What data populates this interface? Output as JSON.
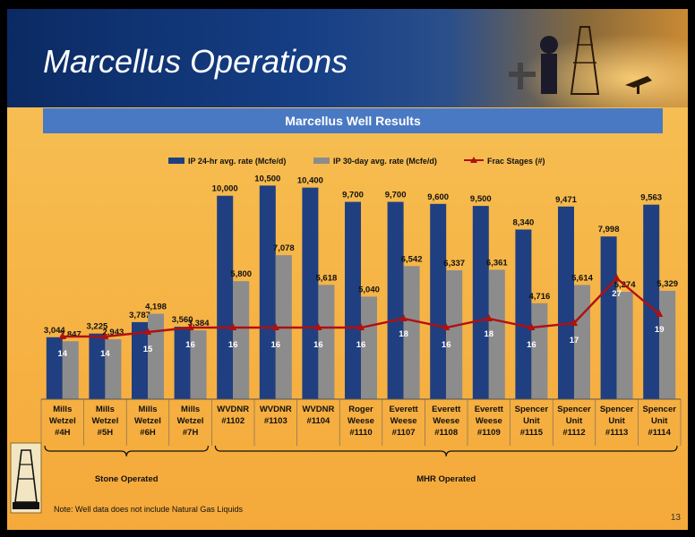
{
  "header": {
    "title": "Marcellus Operations"
  },
  "chart_data": {
    "type": "bar",
    "title": "Marcellus Well Results",
    "ylim": [
      0,
      11000
    ],
    "y2lim": [
      0,
      50
    ],
    "categories": [
      [
        "Mills",
        "Wetzel",
        "#4H"
      ],
      [
        "Mills",
        "Wetzel",
        "#5H"
      ],
      [
        "Mills",
        "Wetzel",
        "#6H"
      ],
      [
        "Mills",
        "Wetzel",
        "#7H"
      ],
      [
        "WVDNR",
        "#1102"
      ],
      [
        "WVDNR",
        "#1103"
      ],
      [
        "WVDNR",
        "#1104"
      ],
      [
        "Roger",
        "Weese",
        "#1110"
      ],
      [
        "Everett",
        "Weese",
        "#1107"
      ],
      [
        "Everett",
        "Weese",
        "#1108"
      ],
      [
        "Everett",
        "Weese",
        "#1109"
      ],
      [
        "Spencer",
        "Unit",
        "#1115"
      ],
      [
        "Spencer",
        "Unit",
        "#1112"
      ],
      [
        "Spencer",
        "Unit",
        "#1113"
      ],
      [
        "Spencer",
        "Unit",
        "#1114"
      ]
    ],
    "series": [
      {
        "name": "IP 24-hr avg. rate (Mcfe/d)",
        "type": "bar",
        "color": "#1f3f80",
        "values": [
          3044,
          3225,
          3787,
          3560,
          10000,
          10500,
          10400,
          9700,
          9700,
          9600,
          9500,
          8340,
          9471,
          7998,
          9563
        ]
      },
      {
        "name": "IP 30-day avg. rate (Mcfe/d)",
        "type": "bar",
        "color": "#8c8c8c",
        "values": [
          2847,
          2943,
          4198,
          3384,
          5800,
          7078,
          5618,
          5040,
          6542,
          6337,
          6361,
          4716,
          5614,
          5274,
          5329
        ]
      },
      {
        "name": "Frac Stages (#)",
        "type": "line",
        "color": "#b01010",
        "values": [
          14,
          14,
          15,
          16,
          16,
          16,
          16,
          16,
          18,
          16,
          18,
          16,
          17,
          27,
          19
        ]
      }
    ],
    "groups": [
      {
        "label": "Stone Operated",
        "from": 0,
        "to": 3
      },
      {
        "label": "MHR Operated",
        "from": 4,
        "to": 14
      }
    ]
  },
  "footer": {
    "note": "Note: Well data does not include Natural Gas Liquids",
    "page": "13"
  }
}
